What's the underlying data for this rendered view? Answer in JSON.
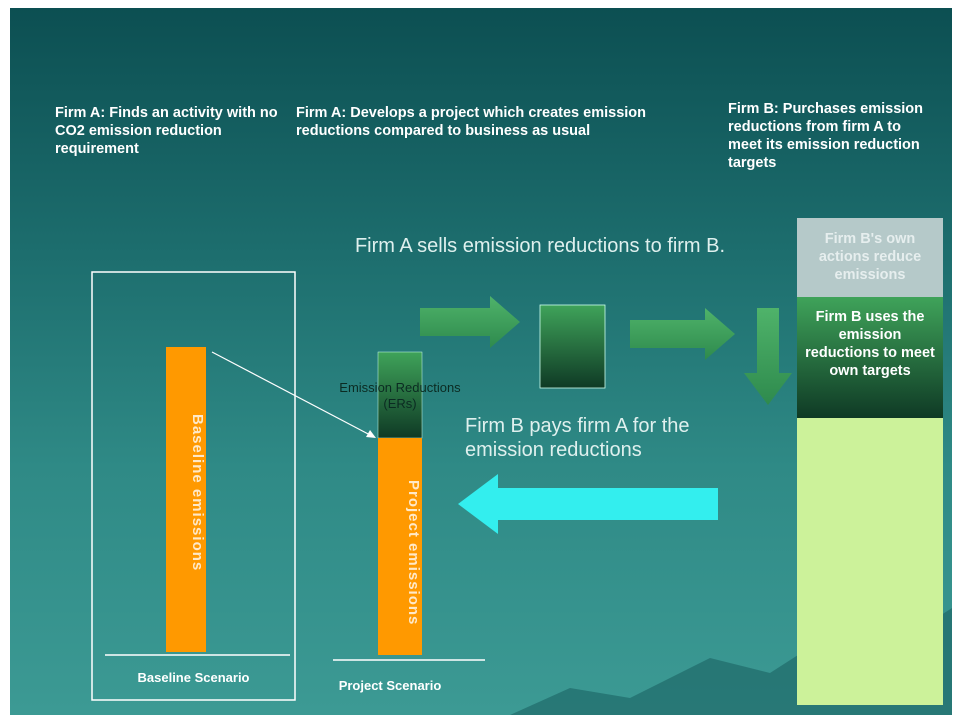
{
  "header": {
    "firm_a_activity": "Firm A:  Finds an activity with no CO2 emission reduction requirement",
    "firm_a_project": "Firm A:  Develops a project which creates emission reductions compared to business as usual",
    "firm_b_purchase": "Firm B: Purchases emission reductions from firm A to meet its emission reduction targets"
  },
  "flows": {
    "sell": "Firm A sells emission reductions to firm B.",
    "pay": "Firm B pays firm A for the emission reductions"
  },
  "baseline": {
    "bar": "Baseline emissions",
    "scenario": "Baseline  Scenario"
  },
  "project": {
    "reductions": "Emission Reductions (ERs)",
    "bar": "Project emissions",
    "scenario": "Project Scenario"
  },
  "firm_b": {
    "own": "Firm B's own actions reduce emissions",
    "uses": "Firm B  uses the emission reductions to meet own targets"
  }
}
